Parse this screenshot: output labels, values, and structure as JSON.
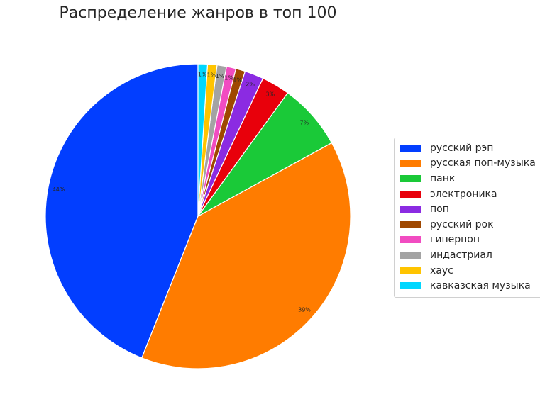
{
  "chart_data": {
    "type": "pie",
    "title": "Распределение жанров в топ 100",
    "start_angle_deg": 90,
    "direction": "counterclockwise",
    "legend_position": "right",
    "slices": [
      {
        "label": "русский рэп",
        "value": 44,
        "pct_label": "44%",
        "color": "#023eff"
      },
      {
        "label": "русская поп-музыка",
        "value": 39,
        "pct_label": "39%",
        "color": "#ff7c00"
      },
      {
        "label": "панк",
        "value": 7,
        "pct_label": "7%",
        "color": "#1ac938"
      },
      {
        "label": "электроника",
        "value": 3,
        "pct_label": "3%",
        "color": "#e8000b"
      },
      {
        "label": "поп",
        "value": 2,
        "pct_label": "2%",
        "color": "#8b2be2"
      },
      {
        "label": "русский рок",
        "value": 1,
        "pct_label": "1%",
        "color": "#9f4800"
      },
      {
        "label": "гиперпоп",
        "value": 1,
        "pct_label": "1%",
        "color": "#f14cc1"
      },
      {
        "label": "индастриал",
        "value": 1,
        "pct_label": "1%",
        "color": "#a3a3a3"
      },
      {
        "label": "хаус",
        "value": 1,
        "pct_label": "1%",
        "color": "#ffc400"
      },
      {
        "label": "кавказская музыка",
        "value": 1,
        "pct_label": "1%",
        "color": "#00d7ff"
      }
    ]
  }
}
